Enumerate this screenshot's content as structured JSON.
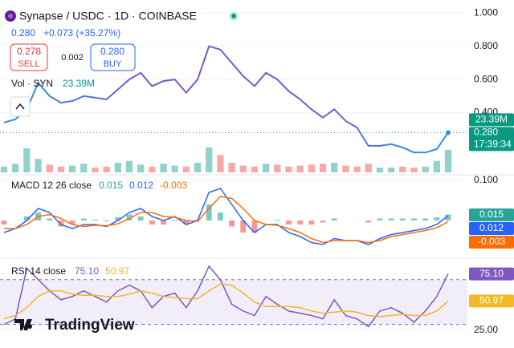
{
  "header": {
    "title": "Synapse / USDC · 1D · COINBASE",
    "price": "0.280",
    "change": "+0.073 (+35.27%)",
    "sell_price": "0.278",
    "sell": "SELL",
    "spread": "0.002",
    "buy_price": "0.280",
    "buy": "BUY",
    "logo": "TradingView"
  },
  "chart_data": [
    {
      "type": "line",
      "values": [
        0.34,
        0.36,
        0.42,
        0.58,
        0.5,
        0.46,
        0.47,
        0.5,
        0.49,
        0.48,
        0.54,
        0.6,
        0.64,
        0.56,
        0.59,
        0.6,
        0.52,
        0.6,
        0.8,
        0.78,
        0.7,
        0.62,
        0.56,
        0.64,
        0.6,
        0.53,
        0.48,
        0.42,
        0.37,
        0.42,
        0.35,
        0.31,
        0.2,
        0.2,
        0.21,
        0.19,
        0.16,
        0.16,
        0.18,
        0.28
      ],
      "colors": [
        "#2196f3",
        "#7e57c2",
        "#7e57c2",
        "#2196f3"
      ],
      "ylim": [
        0.04,
        1.04
      ],
      "yticks": [
        {
          "value": 1,
          "label": "1.000"
        },
        {
          "value": 0.8,
          "label": "0.800"
        },
        {
          "value": 0.6,
          "label": "0.600"
        },
        {
          "value": 0.4,
          "label": "0.400"
        }
      ],
      "last_label": "0.280",
      "countdown": "17:39:34",
      "volume": {
        "label": "Vol · SYN",
        "last_label": "23.39M",
        "values": [
          6,
          9,
          25,
          14,
          8,
          6,
          7,
          9,
          5,
          6,
          10,
          12,
          8,
          6,
          9,
          7,
          6,
          10,
          26,
          18,
          10,
          7,
          6,
          9,
          8,
          6,
          7,
          8,
          9,
          10,
          7,
          6,
          9,
          5,
          5,
          6,
          5,
          6,
          12,
          23.39
        ],
        "colors": [
          "#26a69a",
          "#ef5350"
        ]
      }
    },
    {
      "type": "macd",
      "label": "MACD 12 26 close",
      "ylim": [
        -0.086,
        0.114
      ],
      "yticks": [
        {
          "value": 0.1,
          "label": "0.100"
        }
      ],
      "histogram": {
        "values": [
          -0.01,
          0,
          0.01,
          0.02,
          0.005,
          -0.015,
          -0.01,
          0.005,
          0.002,
          -0.002,
          0.008,
          0.015,
          0.01,
          -0.01,
          -0.01,
          0.002,
          -0.01,
          0.002,
          0.04,
          0.02,
          -0.015,
          -0.03,
          -0.03,
          0,
          0.002,
          -0.01,
          -0.01,
          -0.01,
          -0.005,
          0.005,
          0,
          0,
          -0.005,
          0.005,
          0.005,
          0.005,
          0.005,
          0.005,
          0.008,
          0.015
        ],
        "colors": [
          "#26a69a",
          "#ef5350"
        ],
        "last_label": "0.015"
      },
      "series": [
        {
          "color": "#2962ff",
          "last_label": "0.012",
          "values": [
            -0.03,
            -0.02,
            0,
            0.03,
            0.02,
            -0.01,
            -0.02,
            -0.01,
            -0.01,
            -0.015,
            0,
            0.02,
            0.03,
            0.01,
            0,
            0.01,
            -0.01,
            0,
            0.07,
            0.08,
            0.04,
            0,
            -0.03,
            -0.01,
            -0.01,
            -0.03,
            -0.04,
            -0.055,
            -0.06,
            -0.045,
            -0.05,
            -0.05,
            -0.06,
            -0.045,
            -0.035,
            -0.03,
            -0.025,
            -0.02,
            -0.01,
            0.012
          ]
        },
        {
          "color": "#ff6d00",
          "last_label": "-0.003",
          "values": [
            -0.02,
            -0.02,
            -0.01,
            0.01,
            0.015,
            0.005,
            -0.01,
            -0.015,
            -0.012,
            -0.013,
            -0.008,
            0.005,
            0.02,
            0.02,
            0.01,
            0.008,
            0,
            -0.002,
            0.03,
            0.06,
            0.055,
            0.03,
            0,
            -0.01,
            -0.012,
            -0.02,
            -0.03,
            -0.045,
            -0.055,
            -0.05,
            -0.05,
            -0.05,
            -0.055,
            -0.05,
            -0.04,
            -0.035,
            -0.03,
            -0.025,
            -0.018,
            -0.003
          ]
        }
      ]
    },
    {
      "type": "rsi",
      "label": "RSI 14 close",
      "ylim": [
        19,
        87
      ],
      "yticks": [
        {
          "value": 25,
          "label": "25.00"
        }
      ],
      "bands": [
        30,
        70
      ],
      "band_color": "#7e57c2",
      "series": [
        {
          "color": "#7e57c2",
          "last_label": "75.10",
          "values": [
            30,
            35,
            80,
            70,
            60,
            52,
            55,
            60,
            55,
            50,
            60,
            65,
            60,
            45,
            55,
            58,
            45,
            60,
            82,
            70,
            48,
            42,
            38,
            55,
            48,
            42,
            40,
            38,
            35,
            52,
            38,
            35,
            28,
            42,
            45,
            40,
            32,
            42,
            55,
            75.1
          ]
        },
        {
          "color": "#f2b827",
          "last_label": "50.97",
          "values": [
            35,
            38,
            45,
            55,
            60,
            60,
            57,
            56,
            56,
            55,
            55,
            57,
            60,
            58,
            55,
            54,
            53,
            53,
            60,
            66,
            65,
            58,
            50,
            46,
            46,
            46,
            45,
            42,
            40,
            41,
            42,
            41,
            38,
            37,
            38,
            39,
            38,
            38,
            42,
            50.97
          ]
        }
      ]
    }
  ]
}
